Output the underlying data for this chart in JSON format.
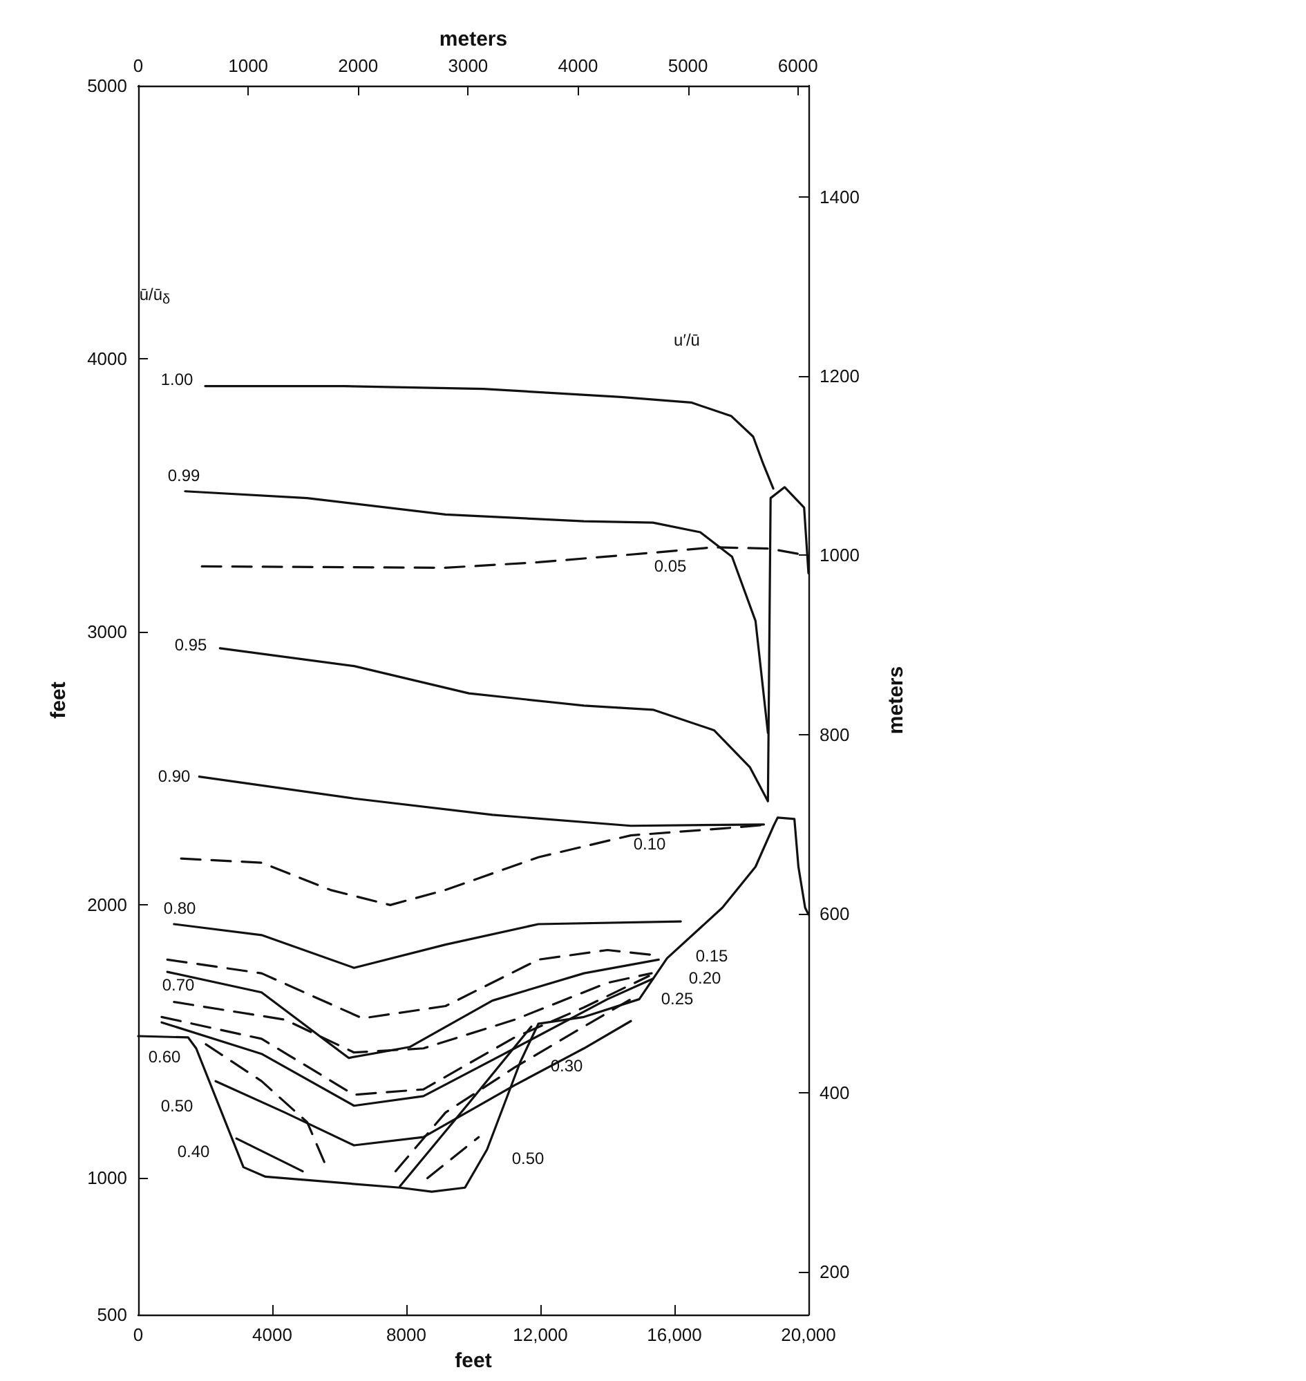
{
  "chart_data": {
    "type": "line",
    "xlabel": "feet",
    "x2label": "meters",
    "ylabel": "feet",
    "y2label": "meters",
    "xlim": [
      0,
      20000
    ],
    "xticks": [
      0,
      4000,
      8000,
      {
        "value": 12000,
        "label": "12,000"
      },
      {
        "value": 16000,
        "label": "16,000"
      },
      {
        "value": 20000,
        "label": "20,000"
      }
    ],
    "x2lim": [
      0,
      6096
    ],
    "x2ticks": [
      0,
      1000,
      2000,
      3000,
      4000,
      5000,
      6000
    ],
    "ylim": [
      500,
      5000
    ],
    "yticks": [
      500,
      1000,
      2000,
      3000,
      4000,
      5000
    ],
    "y2lim": [
      152.4,
      1524
    ],
    "y2ticks": [
      200,
      400,
      600,
      800,
      1000,
      1200,
      1400
    ],
    "marker": "none",
    "grid": false,
    "series": [
      {
        "color": "#111111",
        "line_style": "solid",
        "x": [
          2000,
          6150,
          10300,
          14400,
          16500,
          17700,
          18350,
          18650,
          18950
        ],
        "values": [
          3900,
          3900,
          3890,
          3860,
          3840,
          3790,
          3715,
          3615,
          3525
        ]
      },
      {
        "color": "#111111",
        "line_style": "solid",
        "x": [
          1400,
          5040,
          9170,
          13300,
          15360,
          16770,
          17720,
          18420,
          18790
        ],
        "values": [
          3515,
          3490,
          3430,
          3405,
          3400,
          3365,
          3275,
          3040,
          2630
        ]
      },
      {
        "color": "#111111",
        "line_style": "dashed",
        "x": [
          1900,
          9170,
          11940,
          15360,
          17180,
          18830,
          19950
        ],
        "values": [
          3240,
          3235,
          3255,
          3290,
          3310,
          3305,
          3280
        ]
      },
      {
        "color": "#111111",
        "line_style": "solid",
        "x": [
          2440,
          6440,
          9870,
          13300,
          15360,
          17180,
          18250,
          18790,
          18870,
          19290,
          19870,
          20000
        ],
        "values": [
          2940,
          2875,
          2775,
          2730,
          2715,
          2640,
          2505,
          2380,
          3490,
          3530,
          3455,
          3215
        ]
      },
      {
        "color": "#111111",
        "line_style": "solid",
        "x": [
          1820,
          6440,
          10570,
          14700,
          18670
        ],
        "values": [
          2470,
          2390,
          2330,
          2290,
          2295
        ]
      },
      {
        "color": "#111111",
        "line_style": "dashed",
        "x": [
          1280,
          3680,
          5740,
          7520,
          9170,
          11940,
          14700,
          17430,
          18830
        ],
        "values": [
          2170,
          2155,
          2055,
          2000,
          2055,
          2175,
          2255,
          2280,
          2295
        ]
      },
      {
        "color": "#111111",
        "line_style": "solid",
        "x": [
          0,
          1490,
          1730,
          3140,
          3800,
          7810,
          8760,
          9750,
          10410,
          11400,
          11940,
          13300,
          14950,
          15780,
          17430,
          18420,
          18960,
          19080,
          19580,
          19700,
          19900,
          20000
        ],
        "values": [
          1520,
          1515,
          1475,
          1040,
          1005,
          965,
          950,
          965,
          1105,
          1425,
          1565,
          1590,
          1655,
          1805,
          1990,
          2140,
          2290,
          2320,
          2315,
          2140,
          1990,
          1965
        ]
      },
      {
        "color": "#111111",
        "line_style": "solid",
        "x": [
          1070,
          3680,
          6440,
          9170,
          11940,
          16190
        ],
        "values": [
          1930,
          1890,
          1770,
          1855,
          1930,
          1940
        ]
      },
      {
        "color": "#111111",
        "line_style": "dashed",
        "x": [
          870,
          3680,
          6690,
          9170,
          11940,
          14000,
          15530
        ],
        "values": [
          1800,
          1750,
          1585,
          1630,
          1800,
          1835,
          1815
        ]
      },
      {
        "color": "#111111",
        "line_style": "solid",
        "x": [
          870,
          3680,
          6280,
          8100,
          10570,
          13300,
          15530
        ],
        "values": [
          1755,
          1680,
          1440,
          1480,
          1650,
          1750,
          1800
        ]
      },
      {
        "color": "#111111",
        "line_style": "dashed",
        "x": [
          1070,
          4380,
          6440,
          8510,
          11230,
          14000,
          15320
        ],
        "values": [
          1645,
          1580,
          1460,
          1475,
          1580,
          1715,
          1750
        ]
      },
      {
        "color": "#111111",
        "line_style": "solid",
        "x": [
          700,
          3680,
          6440,
          8510,
          11230,
          14000,
          15360
        ],
        "values": [
          1570,
          1455,
          1265,
          1300,
          1475,
          1655,
          1730
        ]
      },
      {
        "color": "#111111",
        "line_style": "dashed",
        "x": [
          700,
          3680,
          6440,
          8510,
          11230,
          13300,
          15240
        ],
        "values": [
          1590,
          1510,
          1305,
          1325,
          1515,
          1625,
          1740
        ]
      },
      {
        "color": "#111111",
        "line_style": "solid",
        "x": [
          2310,
          4380,
          6440,
          8510,
          11230,
          13300,
          14700
        ],
        "values": [
          1355,
          1240,
          1120,
          1150,
          1340,
          1475,
          1575
        ]
      },
      {
        "color": "#111111",
        "line_style": "solid",
        "x": [
          2930,
          4910
        ],
        "values": [
          1145,
          1025
        ]
      },
      {
        "color": "#111111",
        "line_style": "dashed",
        "x": [
          7680,
          9170,
          11230,
          13300,
          14700
        ],
        "values": [
          1025,
          1240,
          1405,
          1555,
          1655
        ]
      },
      {
        "color": "#111111",
        "line_style": "solid",
        "x": [
          7810,
          9870,
          11730
        ],
        "values": [
          970,
          1275,
          1555
        ]
      },
      {
        "color": "#111111",
        "line_style": "dashed",
        "x": [
          8630,
          10160
        ],
        "values": [
          1000,
          1150
        ]
      },
      {
        "color": "#111111",
        "line_style": "dashed",
        "x": [
          2020,
          3680,
          5040,
          5620
        ],
        "values": [
          1490,
          1355,
          1205,
          1040
        ]
      }
    ],
    "annotations": [
      "ū/ū$_{δ}$",
      "u′/ū",
      "1.00",
      "0.99",
      "0.05",
      "0.95",
      "0.90",
      "0.10",
      "0.80",
      "0.15",
      "0.70",
      "0.20",
      "0.25",
      "0.60",
      "0.30",
      "0.50",
      "0.40",
      "0.50"
    ]
  }
}
